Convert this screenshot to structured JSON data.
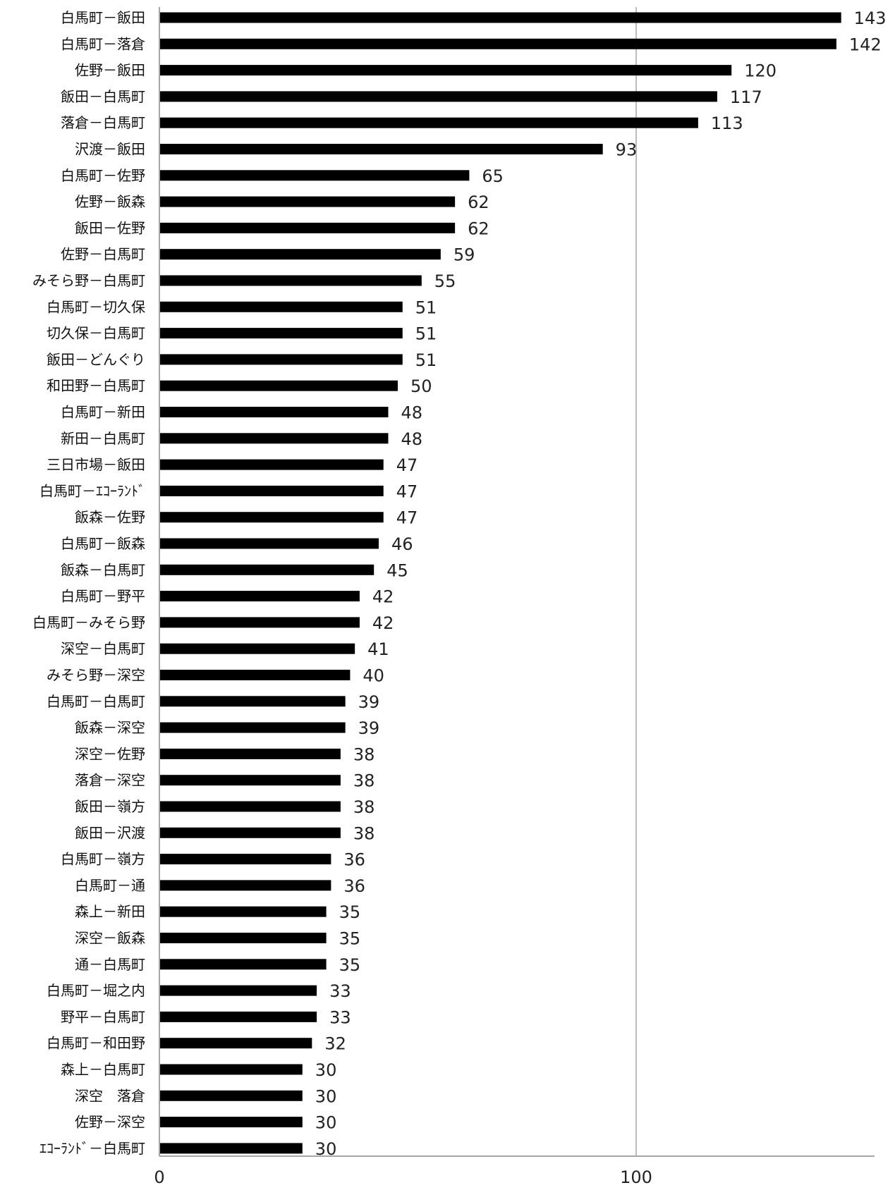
{
  "chart_data": {
    "type": "bar",
    "orientation": "horizontal",
    "categories": [
      "白馬町－飯田",
      "白馬町－落倉",
      "佐野－飯田",
      "飯田－白馬町",
      "落倉－白馬町",
      "沢渡－飯田",
      "白馬町－佐野",
      "佐野－飯森",
      "飯田－佐野",
      "佐野－白馬町",
      "みそら野－白馬町",
      "白馬町－切久保",
      "切久保－白馬町",
      "飯田－どんぐり",
      "和田野－白馬町",
      "白馬町－新田",
      "新田－白馬町",
      "三日市場－飯田",
      "白馬町－ｴｺｰﾗﾝﾄﾞ",
      "飯森－佐野",
      "白馬町－飯森",
      "飯森－白馬町",
      "白馬町－野平",
      "白馬町－みそら野",
      "深空－白馬町",
      "みそら野－深空",
      "白馬町－白馬町",
      "飯森－深空",
      "深空－佐野",
      "落倉－深空",
      "飯田－嶺方",
      "飯田－沢渡",
      "白馬町－嶺方",
      "白馬町－通",
      "森上－新田",
      "深空－飯森",
      "通－白馬町",
      "白馬町－堀之内",
      "野平－白馬町",
      "白馬町－和田野",
      "森上－白馬町",
      "深空　落倉",
      "佐野－深空",
      "ｴｺｰﾗﾝﾄﾞ－白馬町"
    ],
    "values": [
      143,
      142,
      120,
      117,
      113,
      93,
      65,
      62,
      62,
      59,
      55,
      51,
      51,
      51,
      50,
      48,
      48,
      47,
      47,
      47,
      46,
      45,
      42,
      42,
      41,
      40,
      39,
      39,
      38,
      38,
      38,
      38,
      36,
      36,
      35,
      35,
      35,
      33,
      33,
      32,
      30,
      30,
      30,
      30
    ],
    "value_labels": [
      "143",
      "142",
      "120",
      "117",
      "113",
      "93",
      "65",
      "62",
      "62",
      "59",
      "55",
      "51",
      "51",
      "51",
      "50",
      "48",
      "48",
      "47",
      "47",
      "47",
      "46",
      "45",
      "42",
      "42",
      "41",
      "40",
      "39",
      "39",
      "38",
      "38",
      "38",
      "38",
      "36",
      "36",
      "35",
      "35",
      "35",
      "33",
      "33",
      "32",
      "30",
      "30",
      "30",
      "30"
    ],
    "x_ticks": [
      0,
      100
    ],
    "x_tick_labels": [
      "0",
      "100"
    ],
    "xlim": [
      0,
      150
    ],
    "grid": "vertical-major",
    "legend": "none",
    "bar_color": "#000000",
    "grid_color": "#a6a6a6",
    "axis_color": "#a6a6a6"
  }
}
